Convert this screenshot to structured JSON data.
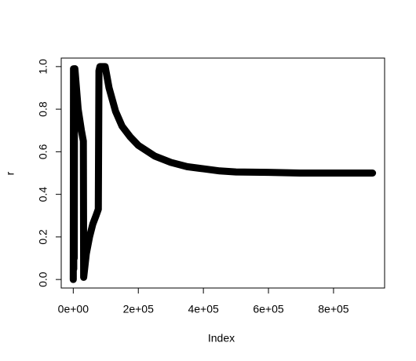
{
  "chart_data": {
    "type": "line",
    "x_label": "Index",
    "y_label": "r",
    "x": [
      0,
      800,
      1500,
      2200,
      3000,
      3800,
      5000,
      15000,
      25000,
      31000,
      32000,
      40000,
      50000,
      60000,
      70000,
      77000,
      79000,
      82000,
      98000,
      110000,
      130000,
      150000,
      175000,
      200000,
      250000,
      300000,
      350000,
      400000,
      450000,
      500000,
      600000,
      700000,
      800000,
      920000
    ],
    "series": [
      {
        "name": "r",
        "color": "#000000",
        "values": [
          0.0,
          0.99,
          0.05,
          0.97,
          0.1,
          0.98,
          0.99,
          0.8,
          0.7,
          0.65,
          0.01,
          0.12,
          0.2,
          0.26,
          0.3,
          0.33,
          0.98,
          1.0,
          1.0,
          0.9,
          0.79,
          0.72,
          0.67,
          0.63,
          0.58,
          0.55,
          0.53,
          0.52,
          0.51,
          0.505,
          0.503,
          0.5,
          0.5,
          0.5
        ]
      }
    ],
    "xlim": [
      -37000,
      957000
    ],
    "ylim": [
      -0.04,
      1.04
    ],
    "xticks": [
      {
        "value": 0,
        "label": "0e+00"
      },
      {
        "value": 200000,
        "label": "2e+05"
      },
      {
        "value": 400000,
        "label": "4e+05"
      },
      {
        "value": 600000,
        "label": "6e+05"
      },
      {
        "value": 800000,
        "label": "8e+05"
      }
    ],
    "yticks": [
      {
        "value": 0,
        "label": "0.0"
      },
      0.2,
      0.4,
      0.6,
      0.8,
      {
        "value": 1,
        "label": "1.0"
      }
    ]
  }
}
